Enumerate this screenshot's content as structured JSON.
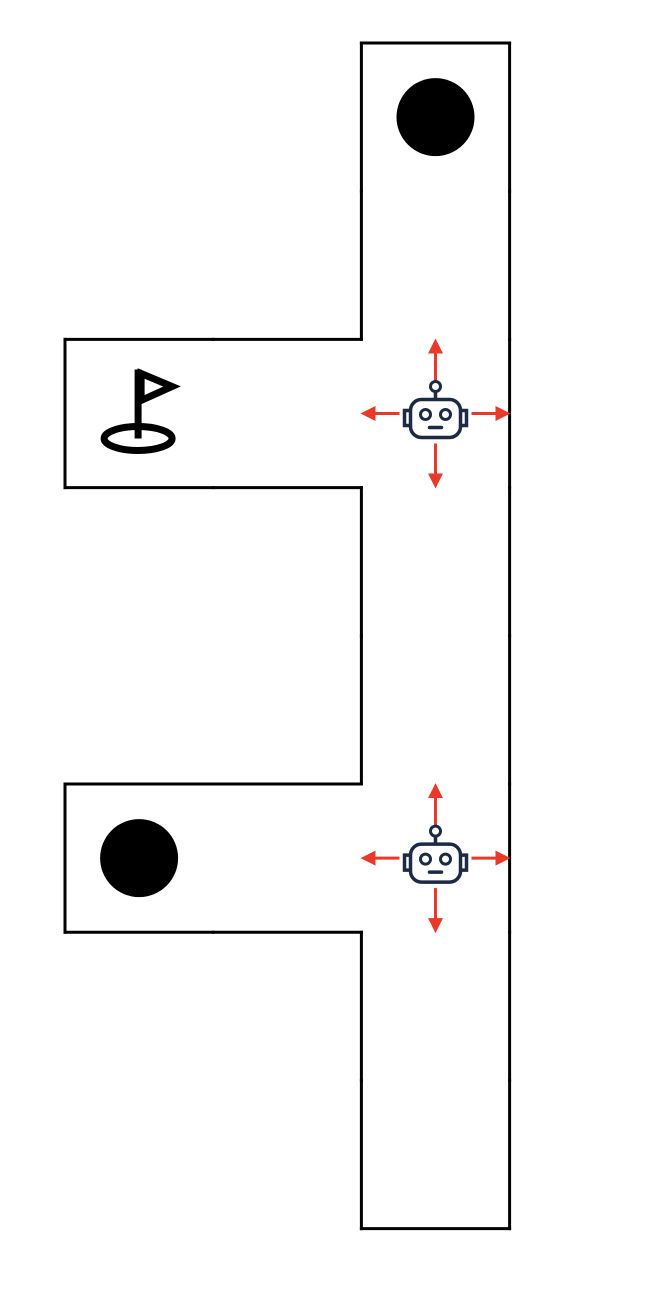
{
  "maze": {
    "wall_color": "#000000",
    "floor_color": "#ffffff",
    "grid": {
      "columns": 3,
      "rows": 8,
      "open_cells": [
        [
          2,
          0
        ],
        [
          2,
          1
        ],
        [
          0,
          2
        ],
        [
          1,
          2
        ],
        [
          2,
          2
        ],
        [
          2,
          3
        ],
        [
          2,
          4
        ],
        [
          0,
          5
        ],
        [
          1,
          5
        ],
        [
          2,
          5
        ],
        [
          2,
          6
        ],
        [
          2,
          7
        ]
      ]
    }
  },
  "items": [
    {
      "kind": "flag",
      "icon": "golf-flag-icon",
      "cell": [
        0,
        2
      ],
      "color": "#000000"
    },
    {
      "kind": "ball",
      "icon": "black-ball-icon",
      "cell": [
        2,
        0
      ],
      "color": "#000000"
    },
    {
      "kind": "ball",
      "icon": "black-ball-icon",
      "cell": [
        0,
        5
      ],
      "color": "#000000"
    }
  ],
  "agents": [
    {
      "icon": "robot-icon",
      "cell": [
        2,
        2
      ],
      "moves": [
        "up",
        "down",
        "left",
        "right"
      ]
    },
    {
      "icon": "robot-icon",
      "cell": [
        2,
        5
      ],
      "moves": [
        "up",
        "down",
        "left",
        "right"
      ]
    }
  ],
  "colors": {
    "robot": "#1c2a44",
    "arrow": "#e8392a"
  }
}
